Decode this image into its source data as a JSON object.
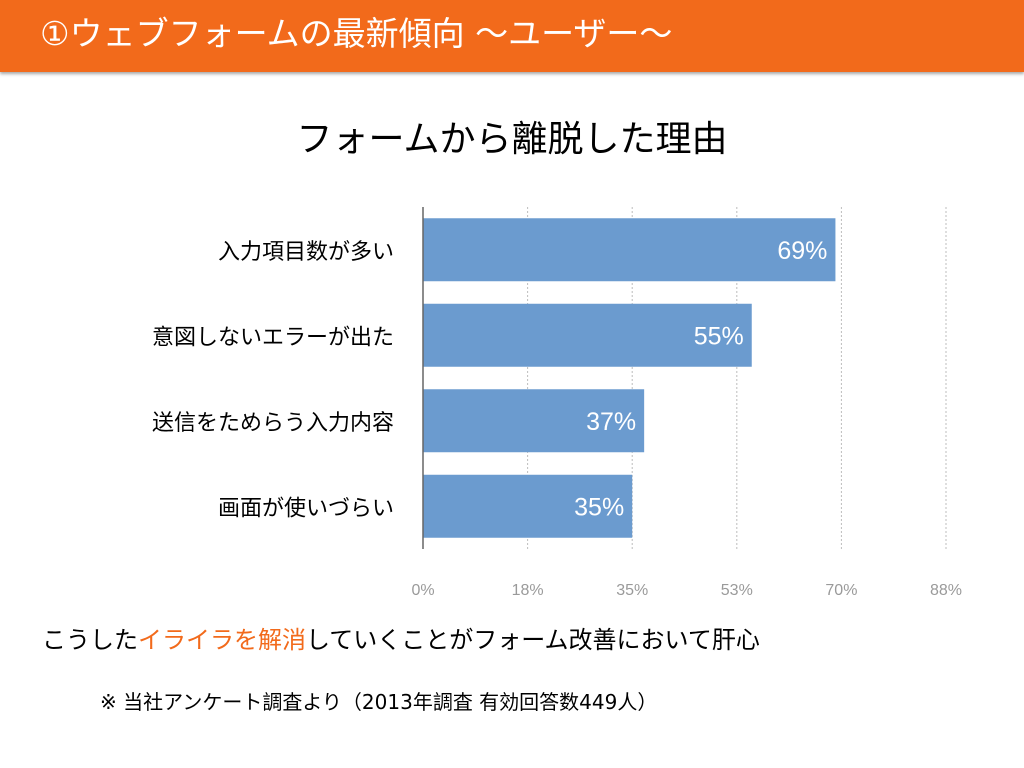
{
  "header": {
    "title": "①ウェブフォームの最新傾向 ～ユーザー～"
  },
  "colors": {
    "header_bg": "#f26a1b",
    "bar": "#6b9bcf",
    "accent_text": "#f26a1b"
  },
  "chart_data": {
    "type": "bar",
    "orientation": "horizontal",
    "title": "フォームから離脱した理由",
    "categories": [
      "入力項目数が多い",
      "意図しないエラーが出た",
      "送信をためらう入力内容",
      "画面が使いづらい"
    ],
    "values": [
      69,
      55,
      37,
      35
    ],
    "data_labels": [
      "69%",
      "55%",
      "37%",
      "35%"
    ],
    "xlim": [
      0,
      88
    ],
    "x_ticks": [
      0,
      17.5,
      35,
      52.5,
      70,
      87.5
    ],
    "x_tick_labels": [
      "0%",
      "18%",
      "35%",
      "53%",
      "70%",
      "88%"
    ],
    "grid": "vertical-dotted",
    "legend": "none"
  },
  "footer": {
    "lead": "こうした",
    "highlight": "イライラを解消",
    "tail": "していくことがフォーム改善において肝心"
  },
  "note": "※ 当社アンケート調査より（2013年調査 有効回答数449人）"
}
